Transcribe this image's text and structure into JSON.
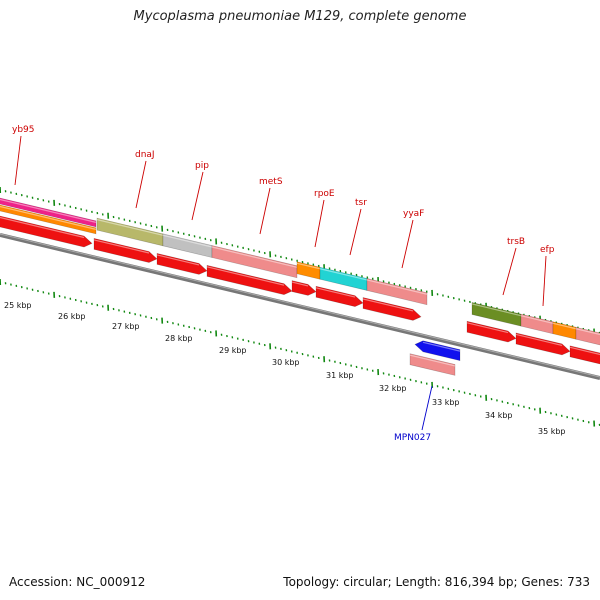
{
  "title": "Mycoplasma pneumoniae M129, complete genome",
  "accession": "Accession: NC_000912",
  "summary": "Topology: circular; Length: 816,394 bp; Genes: 733",
  "kbp_labels": [
    "25 kbp",
    "26 kbp",
    "27 kbp",
    "28 kbp",
    "29 kbp",
    "30 kbp",
    "31 kbp",
    "32 kbp",
    "33 kbp",
    "34 kbp",
    "35 kbp"
  ],
  "gene_labels": [
    {
      "id": "yb95",
      "text": "yb95",
      "strand": "plus"
    },
    {
      "id": "dnaJ",
      "text": "dnaJ",
      "strand": "plus"
    },
    {
      "id": "pip",
      "text": "pip",
      "strand": "plus"
    },
    {
      "id": "metS",
      "text": "metS",
      "strand": "plus"
    },
    {
      "id": "rpoE",
      "text": "rpoE",
      "strand": "plus"
    },
    {
      "id": "tsr",
      "text": "tsr",
      "strand": "plus"
    },
    {
      "id": "yyaF",
      "text": "yyaF",
      "strand": "plus"
    },
    {
      "id": "trsB",
      "text": "trsB",
      "strand": "plus"
    },
    {
      "id": "efp",
      "text": "efp",
      "strand": "plus"
    },
    {
      "id": "MPN027",
      "text": "MPN027",
      "strand": "minus"
    }
  ],
  "colors": {
    "forward_cds": "#ee1111",
    "reverse_cds": "#1111ee",
    "backbone": "#888888",
    "tick": "#118811",
    "label_plus": "#cc0000",
    "label_minus": "#0000cc"
  }
}
